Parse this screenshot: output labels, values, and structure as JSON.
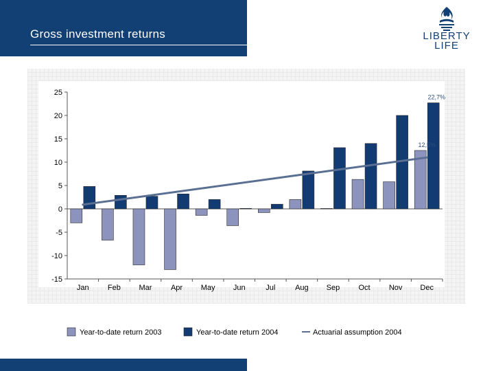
{
  "slide": {
    "title": "Gross investment returns"
  },
  "logo": {
    "line1": "LIBERTY",
    "line2": "LIFE"
  },
  "colors": {
    "brand": "#123f74",
    "series2003": "#8c93bc",
    "series2004": "#123b73",
    "assumption": "#5a6f92"
  },
  "chart_data": {
    "type": "bar",
    "title": "Gross investment returns",
    "categories": [
      "Jan",
      "Feb",
      "Mar",
      "Apr",
      "May",
      "Jun",
      "Jul",
      "Aug",
      "Sep",
      "Oct",
      "Nov",
      "Dec"
    ],
    "series": [
      {
        "name": "Year-to-date return 2003",
        "values": [
          -3.0,
          -6.7,
          -12.0,
          -13.0,
          -1.4,
          -3.6,
          -0.8,
          2.0,
          0.1,
          6.3,
          5.8,
          12.5
        ]
      },
      {
        "name": "Year-to-date return 2004",
        "values": [
          4.8,
          2.9,
          2.7,
          3.2,
          2.0,
          0.1,
          1.0,
          8.1,
          13.1,
          14.0,
          20.0,
          22.7
        ]
      }
    ],
    "line": {
      "name": "Actuarial assumption 2004",
      "start": 0.9,
      "end": 11.0
    },
    "ylim": [
      -15,
      25
    ],
    "yticks": [
      "25",
      "20",
      "15",
      "10",
      "5",
      "0",
      "-5",
      "-10",
      "-15"
    ],
    "annotations": [
      {
        "label": "22,7%",
        "category": "Dec",
        "value": 22.7
      },
      {
        "label": "12,5%",
        "category": "Dec",
        "value": 12.5
      }
    ],
    "legend_position": "bottom",
    "grid": false
  }
}
